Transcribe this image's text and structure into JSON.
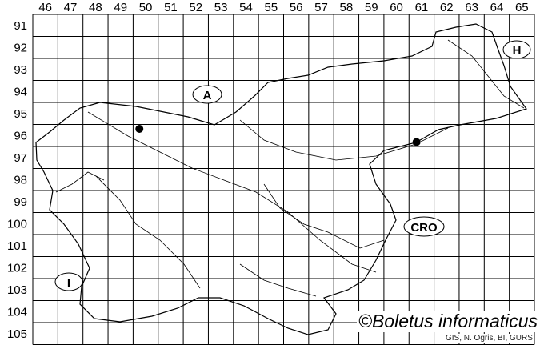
{
  "map": {
    "columns": [
      "46",
      "47",
      "48",
      "49",
      "50",
      "51",
      "52",
      "53",
      "54",
      "55",
      "56",
      "57",
      "58",
      "59",
      "60",
      "61",
      "62",
      "63",
      "64",
      "65"
    ],
    "rows": [
      "91",
      "92",
      "93",
      "94",
      "95",
      "96",
      "97",
      "98",
      "99",
      "100",
      "101",
      "102",
      "103",
      "104",
      "105"
    ],
    "occurrences": [
      {
        "col": 50.25,
        "row": 96.2
      },
      {
        "col": 61.3,
        "row": 96.8
      }
    ],
    "country_labels": {
      "austria": "A",
      "hungary": "H",
      "croatia": "CRO",
      "italy": "I"
    },
    "colors": {
      "lines": "#000000",
      "background": "#ffffff"
    }
  },
  "credit": "©Boletus informaticus",
  "source": "GIS, N. Ogris, BI, GURS"
}
